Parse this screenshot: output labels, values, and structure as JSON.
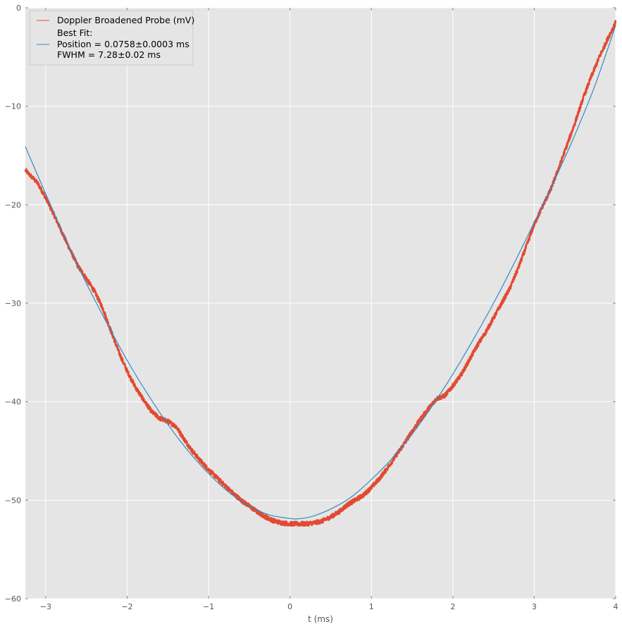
{
  "chart_data": {
    "type": "line",
    "title": "",
    "xlabel": "t (ms)",
    "ylabel": "",
    "xlim": [
      -3.25,
      4
    ],
    "ylim": [
      -60,
      0
    ],
    "xticks": [
      -3,
      -2,
      -1,
      0,
      1,
      2,
      3,
      4
    ],
    "xtick_labels": [
      "−3",
      "−2",
      "−1",
      "0",
      "1",
      "2",
      "3",
      "4"
    ],
    "yticks": [
      0,
      -10,
      -20,
      -30,
      -40,
      -50,
      -60
    ],
    "ytick_labels": [
      "0",
      "−10",
      "−20",
      "−30",
      "−40",
      "−50",
      "−60"
    ],
    "grid": true,
    "background": "#e5e5e5",
    "legend_position": "top-left",
    "series": [
      {
        "name": "Doppler Broadened Probe (mV)",
        "color": "#e24a33",
        "style": "noisy-data",
        "x": [
          -3.25,
          -3.1,
          -3.0,
          -2.9,
          -2.8,
          -2.7,
          -2.6,
          -2.5,
          -2.4,
          -2.3,
          -2.2,
          -2.1,
          -2.0,
          -1.9,
          -1.8,
          -1.7,
          -1.6,
          -1.5,
          -1.4,
          -1.3,
          -1.2,
          -1.1,
          -1.0,
          -0.9,
          -0.8,
          -0.7,
          -0.6,
          -0.5,
          -0.4,
          -0.3,
          -0.2,
          -0.1,
          0.0,
          0.1,
          0.2,
          0.3,
          0.4,
          0.5,
          0.6,
          0.7,
          0.8,
          0.9,
          1.0,
          1.1,
          1.2,
          1.3,
          1.4,
          1.5,
          1.6,
          1.7,
          1.8,
          1.9,
          2.0,
          2.1,
          2.2,
          2.3,
          2.4,
          2.5,
          2.6,
          2.7,
          2.8,
          2.9,
          3.0,
          3.1,
          3.2,
          3.3,
          3.4,
          3.5,
          3.6,
          3.7,
          3.8,
          3.9,
          4.0
        ],
        "y": [
          -16.5,
          -17.8,
          -19.3,
          -21.0,
          -22.8,
          -24.6,
          -26.3,
          -27.5,
          -28.8,
          -30.5,
          -32.8,
          -35.0,
          -36.9,
          -38.5,
          -39.8,
          -41.0,
          -41.7,
          -42.0,
          -42.5,
          -43.8,
          -45.0,
          -46.0,
          -46.9,
          -47.7,
          -48.5,
          -49.3,
          -50.0,
          -50.6,
          -51.2,
          -51.7,
          -52.1,
          -52.3,
          -52.4,
          -52.4,
          -52.4,
          -52.3,
          -52.1,
          -51.7,
          -51.2,
          -50.5,
          -50.0,
          -49.5,
          -48.7,
          -47.8,
          -46.7,
          -45.5,
          -44.3,
          -43.0,
          -41.8,
          -40.7,
          -39.7,
          -39.4,
          -38.4,
          -37.3,
          -35.8,
          -34.3,
          -33.0,
          -31.5,
          -30.0,
          -28.5,
          -26.5,
          -24.3,
          -22.0,
          -20.2,
          -18.5,
          -16.3,
          -14.0,
          -11.7,
          -9.2,
          -7.0,
          -5.0,
          -3.2,
          -1.5
        ]
      },
      {
        "name": "Best Fit:\nPosition = 0.0758±0.0003 ms\nFWHM = 7.28±0.02 ms",
        "name_lines": [
          "Best Fit:",
          "Position = 0.0758±0.0003 ms",
          "FWHM = 7.28±0.02 ms"
        ],
        "color": "#348abd",
        "style": "smooth-fit",
        "x": [
          -3.25,
          -3.0,
          -2.75,
          -2.5,
          -2.25,
          -2.0,
          -1.75,
          -1.5,
          -1.25,
          -1.0,
          -0.75,
          -0.5,
          -0.25,
          0.0,
          0.0758,
          0.25,
          0.5,
          0.75,
          1.0,
          1.25,
          1.5,
          1.75,
          2.0,
          2.25,
          2.5,
          2.75,
          3.0,
          3.25,
          3.5,
          3.75,
          4.0
        ],
        "y": [
          -14.1,
          -18.9,
          -23.6,
          -28.0,
          -32.0,
          -35.8,
          -39.2,
          -42.3,
          -45.0,
          -47.3,
          -49.2,
          -50.6,
          -51.5,
          -51.85,
          -51.9,
          -51.7,
          -50.9,
          -49.7,
          -47.9,
          -45.8,
          -43.3,
          -40.4,
          -37.2,
          -33.7,
          -30.0,
          -26.0,
          -21.8,
          -17.5,
          -12.9,
          -7.8,
          -1.8
        ]
      }
    ]
  }
}
